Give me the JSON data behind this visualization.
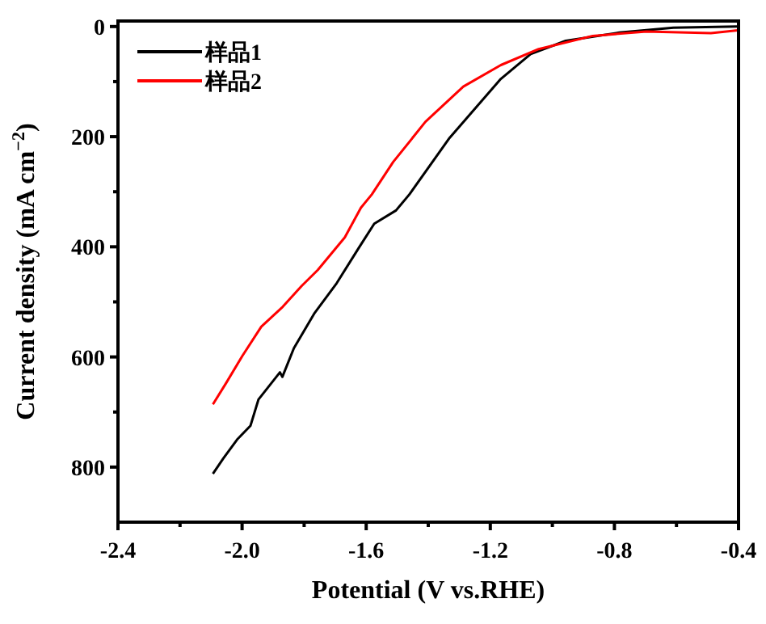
{
  "chart_data": {
    "type": "line",
    "xlabel": "Potential (V vs.RHE)",
    "ylabel": "Current density (mA cm$^{−2}$)",
    "xlim": [
      -2.4,
      -0.4
    ],
    "ylim": [
      900,
      -10
    ],
    "xticks": [
      -2.4,
      {
        "value": -2.2,
        "label": null
      },
      {
        "value": -2.0,
        "label": "-2.0"
      },
      {
        "value": -1.8,
        "label": null
      },
      -1.6,
      {
        "value": -1.4,
        "label": null
      },
      -1.2,
      {
        "value": -1.0,
        "label": null
      },
      -0.8,
      {
        "value": -0.6,
        "label": null
      },
      -0.4
    ],
    "yticks": [
      0,
      {
        "value": 100,
        "label": null
      },
      200,
      {
        "value": 300,
        "label": null
      },
      400,
      {
        "value": 500,
        "label": null
      },
      600,
      {
        "value": 700,
        "label": null
      },
      800
    ],
    "legend": "top left",
    "series": [
      {
        "name": "样品1",
        "color": "#000000",
        "x": [
          -2.094,
          -2.06,
          -2.016,
          -1.973,
          -1.947,
          -1.878,
          -1.87,
          -1.833,
          -1.766,
          -1.695,
          -1.625,
          -1.574,
          -1.504,
          -1.461,
          -1.331,
          -1.166,
          -1.07,
          -0.957,
          -0.784,
          -0.61,
          -0.402
        ],
        "values": [
          812,
          784,
          750,
          725,
          677,
          628,
          636,
          584,
          520,
          466,
          403,
          358,
          334,
          305,
          202,
          95,
          50,
          26,
          11,
          2,
          0
        ]
      },
      {
        "name": "样品2",
        "color": "#ff0000",
        "x": [
          -2.094,
          -2.051,
          -1.999,
          -1.938,
          -1.869,
          -1.808,
          -1.756,
          -1.669,
          -1.617,
          -1.582,
          -1.513,
          -1.409,
          -1.287,
          -1.166,
          -1.044,
          -0.87,
          -0.697,
          -0.489,
          -0.402
        ],
        "values": [
          686,
          647,
          598,
          545,
          509,
          471,
          442,
          383,
          329,
          305,
          246,
          173,
          109,
          70,
          41,
          17,
          9,
          12,
          7
        ]
      }
    ]
  }
}
